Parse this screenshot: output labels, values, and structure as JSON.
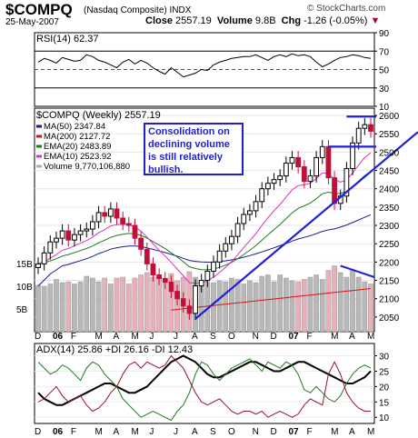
{
  "header": {
    "symbol": "$COMPQ",
    "name": "(Nasdaq Composite)",
    "exchange": "INDX",
    "date": "25-May-2007",
    "close_label": "Close",
    "close": "2557.19",
    "volume_label": "Volume",
    "volume": "9.8B",
    "chg_label": "Chg",
    "chg": "-1.26 (-0.05%)",
    "brand": "© StockCharts.com"
  },
  "callout": "Consolidation on declining volume is still relatively bullish.",
  "colors": {
    "up": "#000000",
    "down": "#c0103a",
    "ma50": "#1a1a8c",
    "ma200": "#e01010",
    "ema20": "#1f7a1f",
    "ema10": "#e030c0",
    "volume": "#b0b0b0",
    "trend": "#1f1fdd",
    "adx": "#000000",
    "pdi": "#1f7a1f",
    "mdi": "#9b1030"
  },
  "chart_data": [
    {
      "type": "line",
      "title": "RSI(14) 62.37",
      "series": [
        {
          "name": "RSI(14)",
          "values": [
            58,
            62,
            60,
            57,
            63,
            61,
            59,
            60,
            66,
            64,
            60,
            58,
            55,
            52,
            58,
            61,
            56,
            60,
            57,
            52,
            48,
            45,
            52,
            47,
            42,
            44,
            46,
            50,
            49,
            55,
            58,
            60,
            62,
            63,
            64,
            64,
            66,
            63,
            60,
            64,
            66,
            64,
            67,
            65,
            66,
            64,
            58,
            53,
            56,
            60,
            63,
            64,
            66,
            65,
            63,
            62
          ]
        }
      ],
      "yticks": [
        90,
        70,
        50,
        30,
        10
      ],
      "ylim": [
        10,
        90
      ]
    },
    {
      "type": "line",
      "title": "$COMPQ (Weekly) 2557.19",
      "categories": [
        "D",
        "06",
        "F",
        "M",
        "A",
        "M",
        "J",
        "J",
        "A",
        "S",
        "O",
        "N",
        "D",
        "07",
        "F",
        "M",
        "A",
        "M"
      ],
      "close": [
        2195,
        2225,
        2255,
        2265,
        2285,
        2260,
        2275,
        2285,
        2290,
        2310,
        2335,
        2325,
        2345,
        2320,
        2305,
        2300,
        2265,
        2235,
        2195,
        2165,
        2155,
        2145,
        2120,
        2100,
        2080,
        2060,
        2135,
        2150,
        2175,
        2200,
        2230,
        2250,
        2270,
        2305,
        2330,
        2340,
        2365,
        2400,
        2415,
        2425,
        2435,
        2470,
        2485,
        2460,
        2420,
        2435,
        2485,
        2515,
        2430,
        2360,
        2380,
        2455,
        2525,
        2565,
        2575,
        2557
      ],
      "legend": [
        {
          "name": "MA(50)",
          "value": "2347.84"
        },
        {
          "name": "MA(200)",
          "value": "2127.72"
        },
        {
          "name": "EMA(20)",
          "value": "2483.89"
        },
        {
          "name": "EMA(10)",
          "value": "2523.92"
        },
        {
          "name": "Volume",
          "value": "9,770,106,880"
        }
      ],
      "yticks": [
        2600,
        2550,
        2500,
        2450,
        2400,
        2350,
        2300,
        2250,
        2200,
        2150,
        2100,
        2050
      ],
      "ylim": [
        2010,
        2620
      ],
      "volume": [
        10.2,
        10.0,
        10.5,
        11.5,
        10.8,
        11.0,
        10.5,
        11.0,
        12.2,
        11.8,
        11.0,
        11.8,
        10.5,
        11.8,
        12.0,
        10.5,
        11.8,
        12.5,
        13.0,
        12.0,
        11.5,
        11.8,
        12.8,
        11.2,
        12.0,
        13.2,
        12.0,
        10.5,
        11.0,
        10.8,
        11.2,
        11.0,
        11.8,
        11.5,
        10.5,
        11.2,
        10.8,
        12.2,
        12.5,
        11.0,
        12.5,
        11.8,
        11.2,
        11.0,
        11.5,
        12.0,
        12.5,
        11.5,
        13.5,
        14.5,
        13.0,
        12.0,
        13.5,
        12.0,
        11.0,
        10.5
      ],
      "volume_ticks": [
        "15B",
        "10B",
        "5B"
      ],
      "volume_ylim": [
        0,
        19
      ]
    },
    {
      "type": "line",
      "title": "ADX(14) 25.86 +DI 26.16 -DI 12.43",
      "series": [
        {
          "name": "ADX(14)",
          "values": [
            18,
            16,
            15,
            14,
            14,
            15,
            16,
            17,
            18,
            19,
            20,
            21,
            21,
            20,
            19,
            18,
            18,
            19,
            20,
            22,
            24,
            26,
            28,
            29,
            30,
            29,
            28,
            26,
            24,
            23,
            23,
            24,
            25,
            26,
            27,
            28,
            28,
            27,
            26,
            25,
            25,
            26,
            27,
            28,
            28,
            27,
            26,
            25,
            24,
            23,
            22,
            21,
            21,
            22,
            23,
            25
          ]
        },
        {
          "name": "+DI",
          "values": [
            28,
            26,
            24,
            25,
            27,
            26,
            24,
            22,
            26,
            28,
            27,
            24,
            22,
            20,
            16,
            14,
            12,
            10,
            11,
            12,
            11,
            10,
            9,
            12,
            14,
            18,
            24,
            28,
            27,
            24,
            22,
            24,
            26,
            27,
            28,
            29,
            27,
            25,
            28,
            27,
            26,
            28,
            27,
            24,
            19,
            18,
            20,
            18,
            16,
            15,
            17,
            21,
            24,
            26,
            27,
            26
          ]
        },
        {
          "name": "-DI",
          "values": [
            15,
            16,
            18,
            20,
            17,
            15,
            16,
            17,
            14,
            12,
            13,
            15,
            18,
            20,
            24,
            27,
            28,
            26,
            28,
            27,
            26,
            27,
            30,
            28,
            26,
            22,
            18,
            15,
            14,
            15,
            16,
            14,
            12,
            11,
            12,
            12,
            11,
            12,
            10,
            11,
            12,
            11,
            10,
            11,
            14,
            16,
            15,
            14,
            24,
            28,
            24,
            18,
            15,
            13,
            12,
            12
          ]
        }
      ],
      "yticks": [
        30,
        25,
        20,
        15,
        10
      ],
      "ylim": [
        8,
        34
      ]
    }
  ]
}
